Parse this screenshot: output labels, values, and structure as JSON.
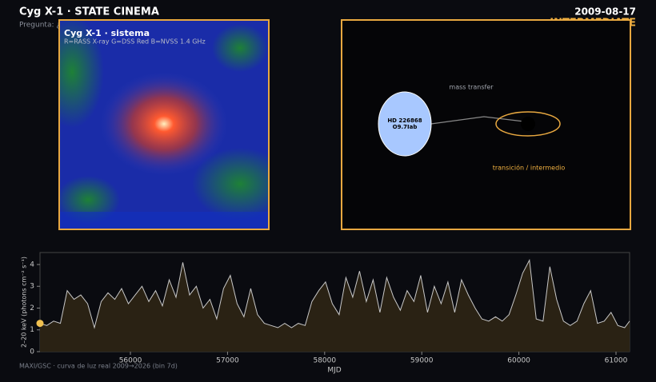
{
  "header": {
    "title": "Cyg X-1  ·  STATE CINEMA",
    "question": "Pregunta: ¿cómo cambia el motor entre estados?",
    "date": "2009-08-17",
    "state": "INTERMEDIATE"
  },
  "image_panel": {
    "title": "Cyg X-1 · sistema",
    "subtitle": "R=RASS X-ray  G=DSS Red  B=NVSS 1.4 GHz"
  },
  "diagram": {
    "flow_label": "mass transfer",
    "star_name": "HD 226868",
    "star_type": "O9.7Iab",
    "state_label": "transición / intermedio"
  },
  "chart_data": {
    "type": "area",
    "xlabel": "MJD",
    "ylabel": "2–20 keV  (photons cm⁻² s⁻¹)",
    "footnote": "MAXI/GSC · curva de luz real 2009→2026 (bin 7d)",
    "color": "#c8c8c8",
    "fill": "#2a2214",
    "xlim": [
      55069,
      61140
    ],
    "ylim": [
      0,
      4.55
    ],
    "xticks": [
      56000,
      57000,
      58000,
      59000,
      60000,
      61000
    ],
    "yticks": [
      0,
      1,
      2,
      3,
      4
    ],
    "x": [
      55069,
      55139,
      55209,
      55279,
      55349,
      55419,
      55489,
      55559,
      55629,
      55699,
      55769,
      55839,
      55909,
      55979,
      56049,
      56119,
      56189,
      56259,
      56329,
      56399,
      56469,
      56539,
      56609,
      56679,
      56749,
      56819,
      56889,
      56959,
      57029,
      57099,
      57169,
      57239,
      57309,
      57379,
      57449,
      57519,
      57589,
      57659,
      57729,
      57799,
      57869,
      57939,
      58009,
      58079,
      58149,
      58219,
      58289,
      58359,
      58429,
      58499,
      58569,
      58639,
      58709,
      58779,
      58849,
      58919,
      58989,
      59059,
      59129,
      59199,
      59269,
      59339,
      59409,
      59479,
      59549,
      59619,
      59689,
      59759,
      59829,
      59899,
      59969,
      60039,
      60109,
      60179,
      60249,
      60319,
      60389,
      60459,
      60529,
      60599,
      60669,
      60739,
      60809,
      60879,
      60949,
      61019,
      61089,
      61140
    ],
    "values": [
      1.3,
      1.2,
      1.4,
      1.3,
      2.8,
      2.4,
      2.6,
      2.2,
      1.1,
      2.3,
      2.7,
      2.4,
      2.9,
      2.2,
      2.6,
      3.0,
      2.3,
      2.8,
      2.1,
      3.3,
      2.5,
      4.1,
      2.6,
      3.0,
      2.0,
      2.4,
      1.5,
      2.9,
      3.5,
      2.2,
      1.6,
      2.9,
      1.7,
      1.3,
      1.2,
      1.1,
      1.3,
      1.1,
      1.3,
      1.2,
      2.3,
      2.8,
      3.2,
      2.2,
      1.7,
      3.4,
      2.5,
      3.7,
      2.3,
      3.3,
      1.8,
      3.4,
      2.5,
      1.9,
      2.8,
      2.3,
      3.5,
      1.8,
      3.0,
      2.2,
      3.2,
      1.8,
      3.3,
      2.6,
      2.0,
      1.5,
      1.4,
      1.6,
      1.4,
      1.7,
      2.6,
      3.6,
      4.2,
      1.5,
      1.4,
      3.9,
      2.4,
      1.4,
      1.2,
      1.4,
      2.2,
      2.8,
      1.3,
      1.4,
      1.8,
      1.2,
      1.1,
      1.4
    ],
    "cursor": {
      "x": 55069,
      "y": 1.3,
      "color": "#f0c050"
    }
  }
}
